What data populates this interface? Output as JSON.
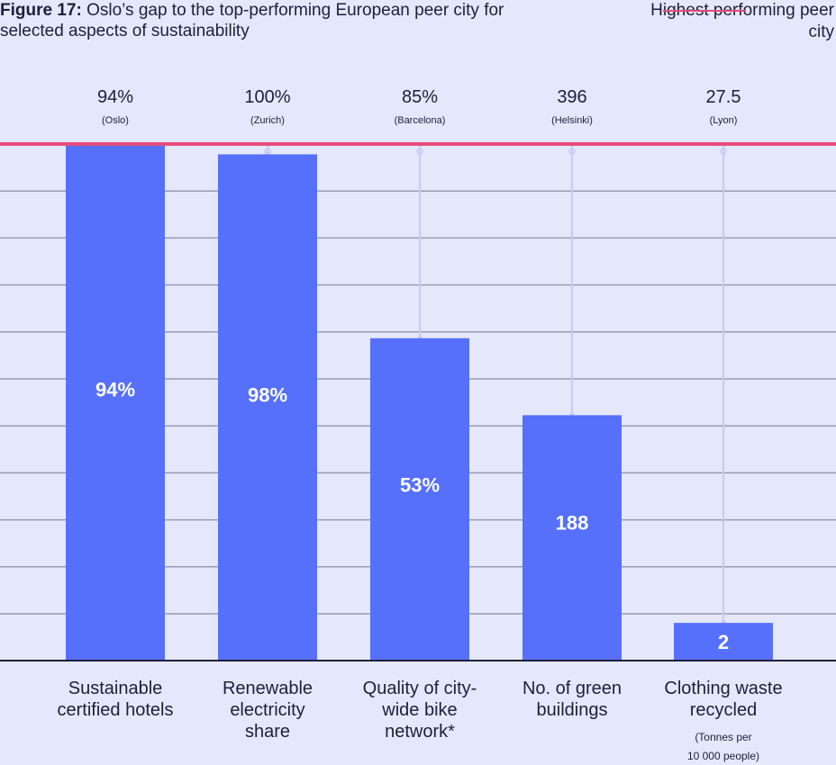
{
  "title": {
    "prefix": "Figure 17:",
    "text": "Oslo’s gap to the top-performing European peer city for selected aspects of sustainability"
  },
  "legend": {
    "label": "Highest performing peer city",
    "color": "#e54b7d"
  },
  "colors": {
    "bar": "#5670fb",
    "connector": "#c4caf5",
    "grid": "#9a9ab0",
    "axis": "#1d1f3b",
    "background": "#e5e8fb"
  },
  "chart_data": {
    "type": "bar",
    "categories": [
      {
        "lines": [
          "Sustainable",
          "certified hotels"
        ],
        "note": []
      },
      {
        "lines": [
          "Renewable",
          "electricity",
          "share"
        ],
        "note": []
      },
      {
        "lines": [
          "Quality of city-",
          "wide bike",
          "network*"
        ],
        "note": []
      },
      {
        "lines": [
          "No. of green",
          "buildings"
        ],
        "note": []
      },
      {
        "lines": [
          "Clothing waste",
          "recycled"
        ],
        "note": [
          "(Tonnes per",
          "10 000 people)"
        ]
      }
    ],
    "series": [
      {
        "values": [
          94,
          98,
          53,
          188,
          2
        ],
        "labels": [
          "94%",
          "98%",
          "53%",
          "188",
          "2"
        ]
      }
    ],
    "peer": {
      "values": [
        94,
        100,
        85,
        396,
        27.5
      ],
      "labels": [
        "94%",
        "100%",
        "85%",
        "396",
        "27.5"
      ],
      "cities": [
        "(Oslo)",
        "(Zurich)",
        "(Barcelona)",
        "(Helsinki)",
        "(Lyon)"
      ]
    },
    "relative_to_peer": [
      1.0,
      0.98,
      0.624,
      0.475,
      0.073
    ],
    "grid": true,
    "legend_position": "top-right"
  }
}
